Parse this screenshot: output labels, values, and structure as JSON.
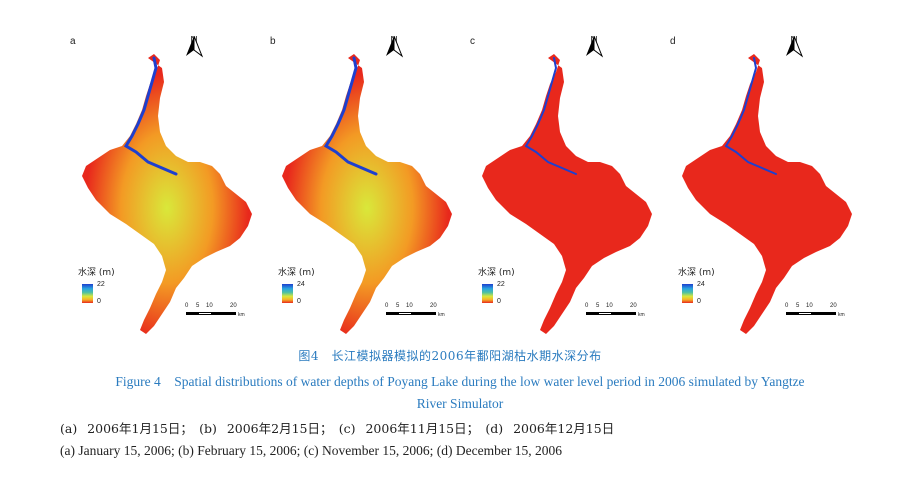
{
  "figure": {
    "panels": [
      {
        "letter": "a",
        "legend_title": "水深 (m)",
        "legend_max": "22",
        "legend_min": "0",
        "north": "N",
        "fill": "mixed"
      },
      {
        "letter": "b",
        "legend_title": "水深 (m)",
        "legend_max": "24",
        "legend_min": "0",
        "north": "N",
        "fill": "mixed"
      },
      {
        "letter": "c",
        "legend_title": "水深 (m)",
        "legend_max": "22",
        "legend_min": "0",
        "north": "N",
        "fill": "red"
      },
      {
        "letter": "d",
        "legend_title": "水深 (m)",
        "legend_max": "24",
        "legend_min": "0",
        "north": "N",
        "fill": "red"
      }
    ],
    "scale": {
      "t0": "0",
      "t1": "5",
      "t2": "10",
      "t3": "20",
      "unit": "km"
    },
    "colors": {
      "deep": "#1e3fcf",
      "mid": "#d9e83a",
      "shallow": "#e8281c",
      "orange": "#f39a24"
    }
  },
  "caption": {
    "cn": "图4　长江模拟器模拟的2006年鄱阳湖枯水期水深分布",
    "en": "Figure 4　Spatial distributions of water depths of Poyang Lake during the low water level period in 2006 simulated by Yangtze River Simulator"
  },
  "subcaption": {
    "cn": "(a) 2006年1月15日；　(b) 2006年2月15日；　(c) 2006年11月15日；　(d) 2006年12月15日",
    "en": "(a) January 15, 2006; (b) February 15, 2006; (c) November 15, 2006; (d) December 15, 2006"
  }
}
